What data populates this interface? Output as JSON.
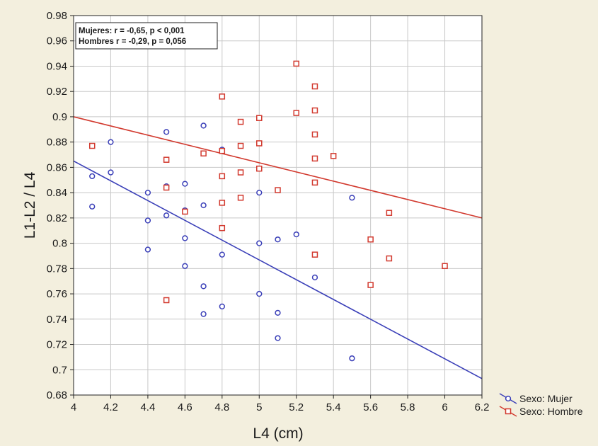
{
  "chart_data": {
    "type": "scatter",
    "xlabel": "L4 (cm)",
    "ylabel": "L1-L2 / L4",
    "xlim": [
      4,
      6.2
    ],
    "ylim": [
      0.68,
      0.98
    ],
    "x_ticks": [
      "4",
      "4.2",
      "4.4",
      "4.6",
      "4.8",
      "5",
      "5.2",
      "5.4",
      "5.6",
      "5.8",
      "6",
      "6.2"
    ],
    "y_ticks": [
      "0.68",
      "0.7",
      "0.72",
      "0.74",
      "0.76",
      "0.78",
      "0.8",
      "0.82",
      "0.84",
      "0.86",
      "0.88",
      "0.9",
      "0.92",
      "0.94",
      "0.96",
      "0.98"
    ],
    "grid": true,
    "legend_position": "bottom-right-outside",
    "annotation_lines": [
      "Mujeres: r = -0,65, p < 0,001",
      "Hombres r = -0,29, p = 0,056"
    ],
    "series": [
      {
        "name": "Sexo: Mujer",
        "marker": "circle",
        "color": "#3a3fb8",
        "points": [
          [
            4.1,
            0.853
          ],
          [
            4.1,
            0.829
          ],
          [
            4.2,
            0.88
          ],
          [
            4.2,
            0.856
          ],
          [
            4.4,
            0.84
          ],
          [
            4.4,
            0.818
          ],
          [
            4.4,
            0.795
          ],
          [
            4.5,
            0.888
          ],
          [
            4.5,
            0.845
          ],
          [
            4.5,
            0.822
          ],
          [
            4.6,
            0.847
          ],
          [
            4.6,
            0.826
          ],
          [
            4.6,
            0.804
          ],
          [
            4.6,
            0.782
          ],
          [
            4.7,
            0.893
          ],
          [
            4.7,
            0.83
          ],
          [
            4.7,
            0.766
          ],
          [
            4.7,
            0.744
          ],
          [
            4.8,
            0.874
          ],
          [
            4.8,
            0.791
          ],
          [
            4.8,
            0.75
          ],
          [
            5.0,
            0.84
          ],
          [
            5.0,
            0.8
          ],
          [
            5.0,
            0.76
          ],
          [
            5.1,
            0.803
          ],
          [
            5.1,
            0.745
          ],
          [
            5.1,
            0.725
          ],
          [
            5.2,
            0.807
          ],
          [
            5.3,
            0.773
          ],
          [
            5.5,
            0.836
          ],
          [
            5.5,
            0.709
          ]
        ],
        "fit_line": [
          [
            4.0,
            0.865
          ],
          [
            6.2,
            0.693
          ]
        ]
      },
      {
        "name": "Sexo: Hombre",
        "marker": "square",
        "color": "#d23a2f",
        "points": [
          [
            4.1,
            0.877
          ],
          [
            4.5,
            0.866
          ],
          [
            4.5,
            0.844
          ],
          [
            4.5,
            0.755
          ],
          [
            4.6,
            0.825
          ],
          [
            4.7,
            0.871
          ],
          [
            4.8,
            0.916
          ],
          [
            4.8,
            0.873
          ],
          [
            4.8,
            0.853
          ],
          [
            4.8,
            0.832
          ],
          [
            4.8,
            0.812
          ],
          [
            4.9,
            0.896
          ],
          [
            4.9,
            0.877
          ],
          [
            4.9,
            0.856
          ],
          [
            4.9,
            0.836
          ],
          [
            5.0,
            0.899
          ],
          [
            5.0,
            0.879
          ],
          [
            5.0,
            0.859
          ],
          [
            5.1,
            0.842
          ],
          [
            5.2,
            0.942
          ],
          [
            5.2,
            0.903
          ],
          [
            5.3,
            0.924
          ],
          [
            5.3,
            0.905
          ],
          [
            5.3,
            0.886
          ],
          [
            5.3,
            0.867
          ],
          [
            5.3,
            0.848
          ],
          [
            5.3,
            0.791
          ],
          [
            5.4,
            0.869
          ],
          [
            5.6,
            0.803
          ],
          [
            5.6,
            0.767
          ],
          [
            5.7,
            0.824
          ],
          [
            5.7,
            0.788
          ],
          [
            6.0,
            0.782
          ]
        ],
        "fit_line": [
          [
            4.0,
            0.9
          ],
          [
            6.2,
            0.82
          ]
        ]
      }
    ]
  }
}
